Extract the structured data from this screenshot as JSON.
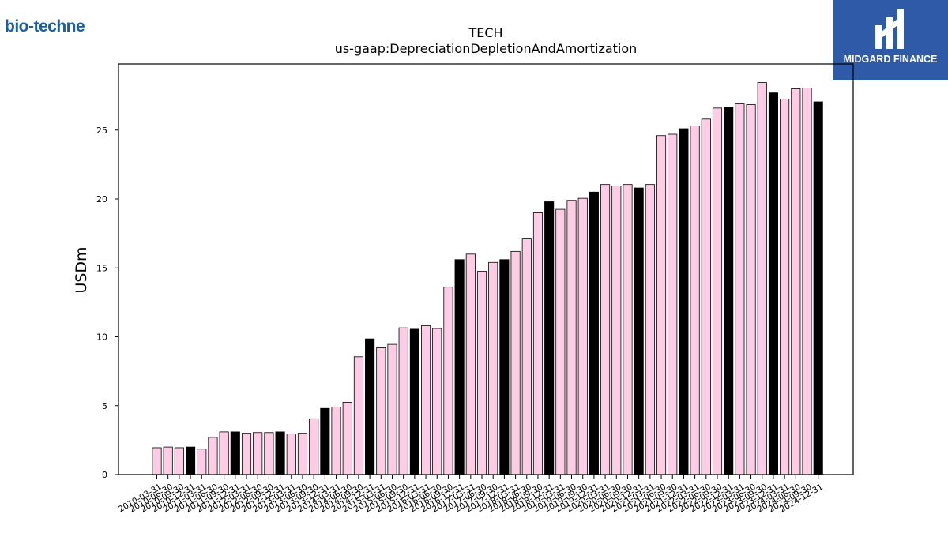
{
  "branding": {
    "left_logo_text": "bio-techne",
    "right_logo_text": "MIDGARD FINANCE"
  },
  "colors": {
    "bar_fill": "#ffcce6",
    "bar_highlight": "#000000",
    "edge": "#000000"
  },
  "chart_data": {
    "type": "bar",
    "title": "TECH",
    "subtitle": "us-gaap:DepreciationDepletionAndAmortization",
    "ylabel": "USDm",
    "xlabel": "",
    "ylim": [
      0,
      29.8
    ],
    "yticks": [
      0,
      5,
      10,
      15,
      20,
      25
    ],
    "grid": false,
    "categories": [
      "2010-03-31",
      "2010-06-30",
      "2010-09-30",
      "2010-12-31",
      "2011-03-31",
      "2011-06-30",
      "2011-09-30",
      "2011-12-31",
      "2012-03-31",
      "2012-06-30",
      "2012-09-30",
      "2012-12-31",
      "2013-03-31",
      "2013-06-30",
      "2013-09-30",
      "2013-12-31",
      "2014-03-31",
      "2014-06-30",
      "2014-09-30",
      "2014-12-31",
      "2015-03-31",
      "2015-06-30",
      "2015-09-30",
      "2015-12-31",
      "2016-03-31",
      "2016-06-30",
      "2016-09-30",
      "2016-12-31",
      "2017-03-31",
      "2017-06-30",
      "2017-09-30",
      "2017-12-31",
      "2018-03-31",
      "2018-06-30",
      "2018-09-30",
      "2018-12-31",
      "2019-03-31",
      "2019-06-30",
      "2019-09-30",
      "2019-12-31",
      "2020-03-31",
      "2020-06-30",
      "2020-09-30",
      "2020-12-31",
      "2021-03-31",
      "2021-06-30",
      "2021-09-30",
      "2021-12-31",
      "2022-03-31",
      "2022-06-30",
      "2022-09-30",
      "2022-12-31",
      "2023-03-31",
      "2023-06-30",
      "2023-09-30",
      "2023-12-31",
      "2024-03-31",
      "2024-06-30",
      "2024-09-30",
      "2024-12-31"
    ],
    "values": [
      1.95,
      2.0,
      1.95,
      2.0,
      1.85,
      2.7,
      3.1,
      3.1,
      3.0,
      3.05,
      3.05,
      3.1,
      2.95,
      3.0,
      4.05,
      4.8,
      4.9,
      5.25,
      8.55,
      9.85,
      9.2,
      9.45,
      10.65,
      10.55,
      10.8,
      10.6,
      13.6,
      15.6,
      16.0,
      14.75,
      15.4,
      15.6,
      16.2,
      17.1,
      19.0,
      19.8,
      19.25,
      19.9,
      20.05,
      20.5,
      21.05,
      20.95,
      21.05,
      20.8,
      21.05,
      24.6,
      24.7,
      25.1,
      25.3,
      25.8,
      26.6,
      26.65,
      26.9,
      26.85,
      28.45,
      27.7,
      27.25,
      28.0,
      28.05,
      27.05
    ],
    "highlighted": [
      false,
      false,
      false,
      true,
      false,
      false,
      false,
      true,
      false,
      false,
      false,
      true,
      false,
      false,
      false,
      true,
      false,
      false,
      false,
      true,
      false,
      false,
      false,
      true,
      false,
      false,
      false,
      true,
      false,
      false,
      false,
      true,
      false,
      false,
      false,
      true,
      false,
      false,
      false,
      true,
      false,
      false,
      false,
      true,
      false,
      false,
      false,
      true,
      false,
      false,
      false,
      true,
      false,
      false,
      false,
      true,
      false,
      false,
      false,
      true
    ]
  }
}
